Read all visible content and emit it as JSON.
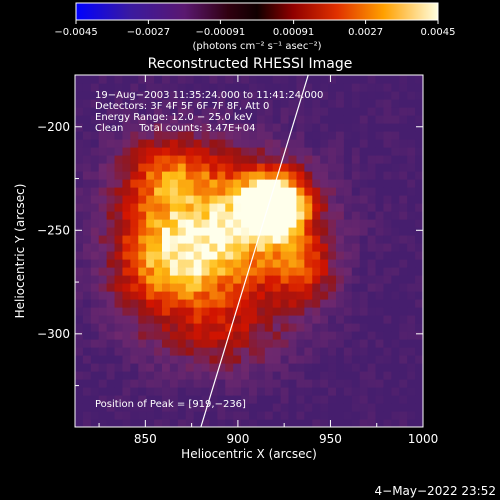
{
  "chart_data": {
    "type": "heatmap",
    "title": "Reconstructed RHESSI Image",
    "xlabel": "Heliocentric X (arcsec)",
    "ylabel": "Heliocentric Y (arcsec)",
    "xlim": [
      812,
      1000
    ],
    "ylim": [
      -345,
      -175
    ],
    "x_ticks": [
      850,
      900,
      950,
      1000
    ],
    "x_tick_labels": [
      "850",
      "900",
      "950",
      "1000"
    ],
    "y_ticks": [
      -200,
      -250,
      -300
    ],
    "y_tick_labels": [
      "−200",
      "−250",
      "−300"
    ],
    "colorbar": {
      "range": [
        -0.0045,
        0.0045
      ],
      "ticks": [
        -0.0045,
        -0.0027,
        -0.00091,
        0.00091,
        0.0027,
        0.0045
      ],
      "tick_labels": [
        "−0.0045",
        "−0.0027",
        "−0.00091",
        "0.00091",
        "0.0027",
        "0.0045"
      ],
      "unit_label": "(photons cm⁻² s⁻¹ asec⁻²)"
    },
    "annotations": [
      "19−Aug−2003 11:35:24.000 to 11:41:24.000",
      "Detectors: 3F 4F 5F 6F 7F 8F, Att 0",
      "Energy Range: 12.0 − 25.0 keV",
      "Clean     Total counts: 3.47E+04"
    ],
    "peak_label": "Position of Peak = [919,−236]",
    "peak": [
      919,
      -236
    ],
    "limb_line": [
      [
        880,
        -345
      ],
      [
        938,
        -175
      ]
    ],
    "sources": [
      {
        "x": 920,
        "y": -237,
        "sx": 12,
        "sy": 10,
        "amp": 1.0
      },
      {
        "x": 905,
        "y": -243,
        "sx": 30,
        "sy": 22,
        "amp": 0.65
      },
      {
        "x": 880,
        "y": -265,
        "sx": 22,
        "sy": 18,
        "amp": 0.55
      },
      {
        "x": 850,
        "y": -260,
        "sx": 18,
        "sy": 28,
        "amp": 0.5
      },
      {
        "x": 865,
        "y": -220,
        "sx": 20,
        "sy": 14,
        "amp": 0.45
      },
      {
        "x": 895,
        "y": -300,
        "sx": 25,
        "sy": 15,
        "amp": 0.4
      },
      {
        "x": 935,
        "y": -270,
        "sx": 14,
        "sy": 14,
        "amp": 0.45
      }
    ],
    "grid": false
  },
  "footer": {
    "timestamp": "4−May−2022 23:52"
  }
}
